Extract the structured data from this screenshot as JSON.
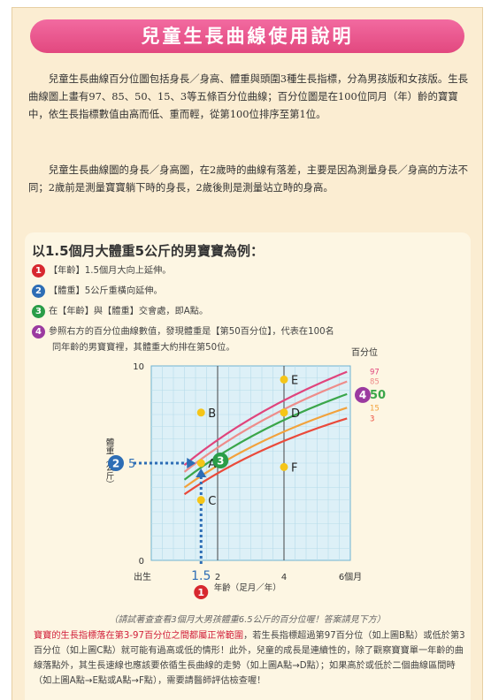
{
  "title": "兒童生長曲線使用說明",
  "paragraph1": "兒童生長曲線百分位圖包括身長／身高、體重與頭圍3種生長指標，分為男孩版和女孩版。生長曲線圖上畫有97、85、50、15、3等五條百分位曲線；百分位圖是在100位同月（年）齡的寶寶中，依生長指標數值由高而低、重而輕，從第100位排序至第1位。",
  "paragraph2": "兒童生長曲線圖的身長／身高圖，在2歲時的曲線有落差，主要是因為測量身長／身高的方法不同；2歲前是測量寶寶躺下時的身長，2歲後則是測量站立時的身高。",
  "example": {
    "title": "以1.5個月大體重5公斤的男寶寶為例：",
    "steps": [
      {
        "num": "1",
        "color": "#d7282f",
        "text": "【年齡】1.5個月大向上延伸。"
      },
      {
        "num": "2",
        "color": "#2d6db5",
        "text": "【體重】5公斤重橫向延伸。"
      },
      {
        "num": "3",
        "color": "#2a9d48",
        "text": "在【年齡】與【體重】交會處，即A點。"
      },
      {
        "num": "4",
        "color": "#9b3aa0",
        "text": "參照右方的百分位曲線數值，發現體重是【第50百分位】，代表在100名",
        "cont": "同年齡的男寶寶裡，其體重大約排在第50位。"
      }
    ]
  },
  "chart_data": {
    "type": "line",
    "ylabel": "體重（公斤）",
    "xlabel": "年齡（足月／年）",
    "percentile_label": "百分位",
    "x_tick_labels": [
      {
        "x": 0,
        "label": "出生"
      },
      {
        "x": 1.5,
        "label": "1.5"
      },
      {
        "x": 2,
        "label": "2"
      },
      {
        "x": 4,
        "label": "4"
      },
      {
        "x": 6,
        "label": "6個月"
      }
    ],
    "y_tick_labels": [
      {
        "y": 0,
        "label": "0"
      },
      {
        "y": 5,
        "label": "5"
      },
      {
        "y": 10,
        "label": "10"
      }
    ],
    "xlim": [
      0,
      6
    ],
    "ylim": [
      0,
      10
    ],
    "series": [
      {
        "name": "97",
        "color": "#e0447c",
        "points": [
          [
            1,
            4.9
          ],
          [
            3,
            7.45
          ],
          [
            5.9,
            9.7
          ]
        ]
      },
      {
        "name": "85",
        "color": "#ee8c8a",
        "points": [
          [
            1,
            4.55
          ],
          [
            3,
            7.0
          ],
          [
            5.9,
            9.2
          ]
        ]
      },
      {
        "name": "50",
        "color": "#3aa64a",
        "points": [
          [
            1,
            4.15
          ],
          [
            3,
            6.5
          ],
          [
            5.9,
            8.55
          ]
        ]
      },
      {
        "name": "15",
        "color": "#f2a23c",
        "points": [
          [
            1,
            3.75
          ],
          [
            3,
            5.95
          ],
          [
            5.9,
            7.85
          ]
        ]
      },
      {
        "name": "3",
        "color": "#ea4a3a",
        "points": [
          [
            1,
            3.4
          ],
          [
            3,
            5.5
          ],
          [
            5.9,
            7.3
          ]
        ]
      }
    ],
    "points": [
      {
        "name": "A",
        "x": 1.5,
        "y": 5
      },
      {
        "name": "B",
        "x": 1.5,
        "y": 7.6
      },
      {
        "name": "C",
        "x": 1.5,
        "y": 3.1
      },
      {
        "name": "D",
        "x": 4,
        "y": 7.6
      },
      {
        "name": "E",
        "x": 4,
        "y": 9.3
      },
      {
        "name": "F",
        "x": 4,
        "y": 4.8
      }
    ],
    "markers": {
      "age": "1",
      "weight": "2",
      "intersection": "3",
      "percentile": "4"
    },
    "grid": true
  },
  "caption": "（請試著查查看3個月大男孩體重6.5公斤的百分位喔！答案請見下方）",
  "bottom": {
    "highlight": "寶寶的生長指標落在第3-97百分位之間都屬正常範圍",
    "text": "，若生長指標超過第97百分位（如上圖B點）或低於第3百分位（如上圖C點）就可能有過高或低的情形！此外，兒童的成長是連續性的，除了觀察寶寶單一年齡的曲線落點外，其生長速線也應該要依循生長曲線的走勢（如上圖A點→D點）；如果高於或低於二個曲線區間時（如上圖A點→E點或A點→F點），需要請醫師評估檢查喔！"
  }
}
